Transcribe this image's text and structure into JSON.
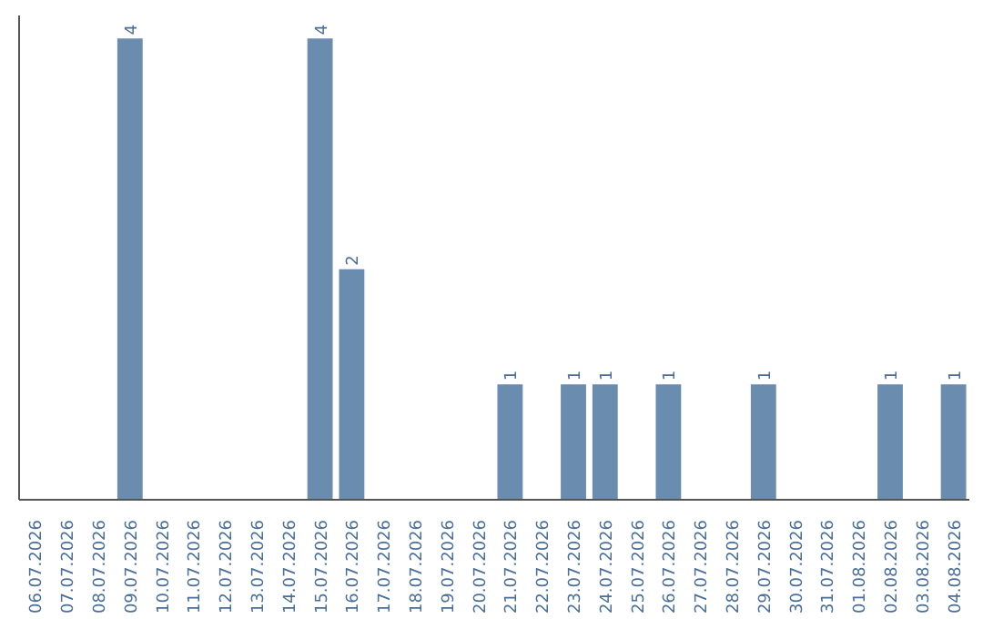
{
  "chart_data": {
    "type": "bar",
    "categories": [
      "06.07.2026",
      "07.07.2026",
      "08.07.2026",
      "09.07.2026",
      "10.07.2026",
      "11.07.2026",
      "12.07.2026",
      "13.07.2026",
      "14.07.2026",
      "15.07.2026",
      "16.07.2026",
      "17.07.2026",
      "18.07.2026",
      "19.07.2026",
      "20.07.2026",
      "21.07.2026",
      "22.07.2026",
      "23.07.2026",
      "24.07.2026",
      "25.07.2026",
      "26.07.2026",
      "27.07.2026",
      "28.07.2026",
      "29.07.2026",
      "30.07.2026",
      "31.07.2026",
      "01.08.2026",
      "02.08.2026",
      "03.08.2026",
      "04.08.2026"
    ],
    "values": [
      0,
      0,
      0,
      4,
      0,
      0,
      0,
      0,
      0,
      4,
      2,
      0,
      0,
      0,
      0,
      1,
      0,
      1,
      1,
      0,
      1,
      0,
      0,
      1,
      0,
      0,
      0,
      1,
      0,
      1
    ],
    "value_labels": [
      null,
      null,
      null,
      "4",
      null,
      null,
      null,
      null,
      null,
      "4",
      "2",
      null,
      null,
      null,
      null,
      "1",
      null,
      "1",
      "1",
      null,
      "1",
      null,
      null,
      "1",
      null,
      null,
      null,
      "1",
      null,
      "1"
    ],
    "color": "#6a8caf",
    "ylim": [
      0,
      4.2
    ],
    "tick_labels": "x",
    "grid": false
  }
}
